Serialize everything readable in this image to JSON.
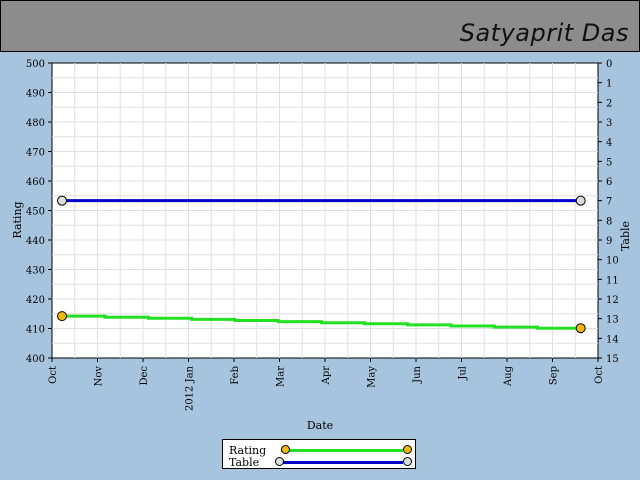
{
  "header": {
    "name": "Satyaprit Das"
  },
  "colors": {
    "background": "#a6c4de",
    "header": "#8c8c8c",
    "rating_line": "#22e022",
    "table_line": "#0000cc",
    "rating_marker": "#f5b800",
    "table_marker": "#dcdcdc"
  },
  "chart_data": {
    "type": "line",
    "xlabel": "Date",
    "ylabel": "Rating",
    "y2label": "Table",
    "ylim": [
      400,
      500
    ],
    "y2lim": [
      0,
      15
    ],
    "y2_inverted": true,
    "yticks": [
      "400",
      "410",
      "420",
      "430",
      "440",
      "450",
      "460",
      "470",
      "480",
      "490",
      "500"
    ],
    "y2ticks": [
      "0",
      "1",
      "2",
      "3",
      "4",
      "5",
      "6",
      "7",
      "8",
      "9",
      "10",
      "11",
      "12",
      "13",
      "14",
      "15"
    ],
    "xticks": [
      "Oct",
      "Nov",
      "Dec",
      "2012 Jan",
      "Feb",
      "Mar",
      "Apr",
      "May",
      "Jun",
      "Jul",
      "Aug",
      "Sep",
      "Oct"
    ],
    "grid": true,
    "legend_position": "bottom",
    "series": [
      {
        "name": "Rating",
        "axis": "left",
        "x": [
          0.22,
          11.62
        ],
        "values": [
          414.2,
          410.1
        ]
      },
      {
        "name": "Table",
        "axis": "right",
        "x": [
          0.22,
          11.62
        ],
        "values": [
          7,
          7
        ]
      }
    ]
  }
}
